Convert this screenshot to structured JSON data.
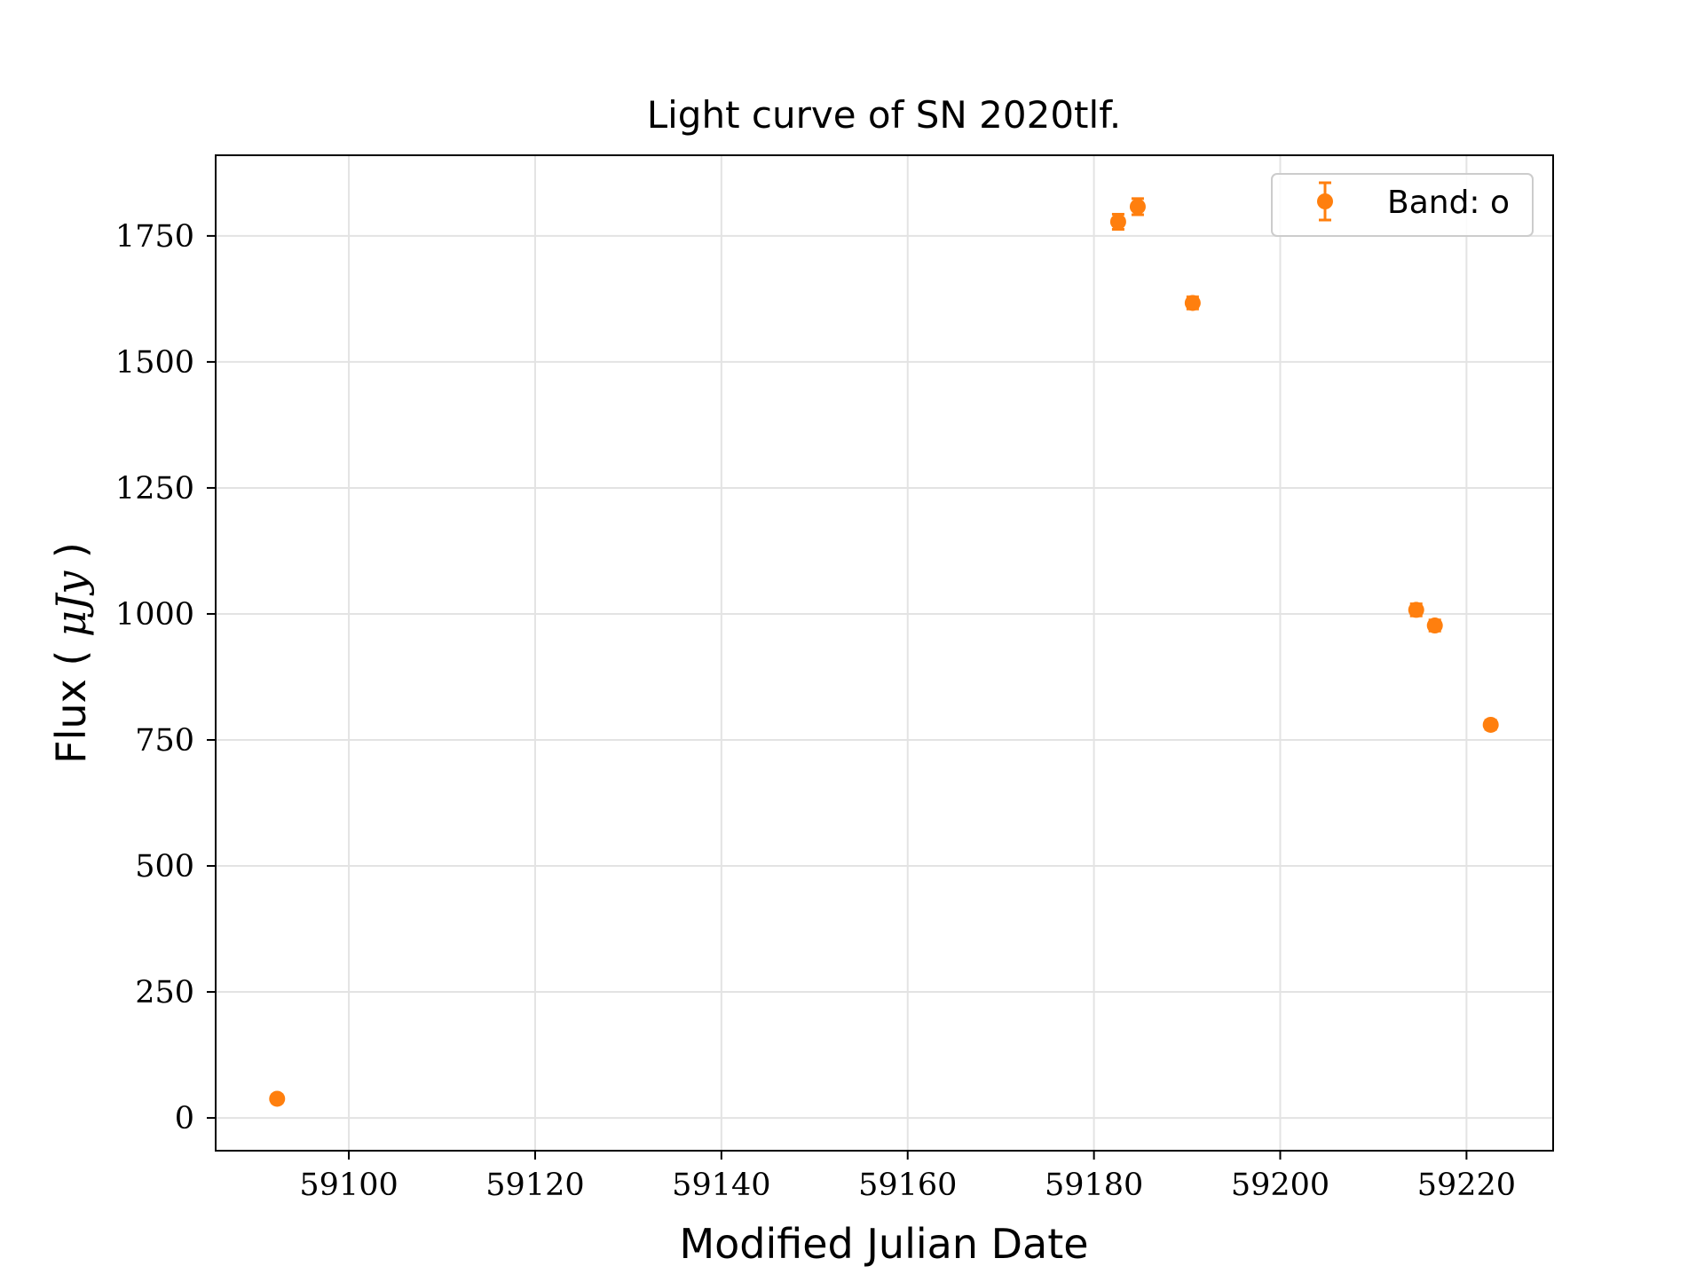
{
  "chart_data": {
    "type": "scatter",
    "title": "Light curve of SN 2020tlf.",
    "xlabel": "Modified Julian Date",
    "ylabel_text": "Flux",
    "ylabel_unit": "μJy",
    "xlim": [
      59085.7,
      59229.3
    ],
    "ylim": [
      -65,
      1910
    ],
    "xticks": [
      59100,
      59120,
      59140,
      59160,
      59180,
      59200,
      59220
    ],
    "yticks": [
      0,
      250,
      500,
      750,
      1000,
      1250,
      1500,
      1750
    ],
    "grid": true,
    "legend_position": "top-right",
    "series": [
      {
        "name": "Band: o",
        "color": "#ff7f0e",
        "marker": "circle-with-errorbar",
        "x": [
          59092.3,
          59182.6,
          59184.7,
          59190.6,
          59214.6,
          59216.6,
          59222.6
        ],
        "y": [
          38,
          1778,
          1808,
          1617,
          1008,
          977,
          780
        ],
        "yerr": [
          8,
          15,
          16,
          12,
          12,
          11,
          9
        ]
      }
    ]
  }
}
